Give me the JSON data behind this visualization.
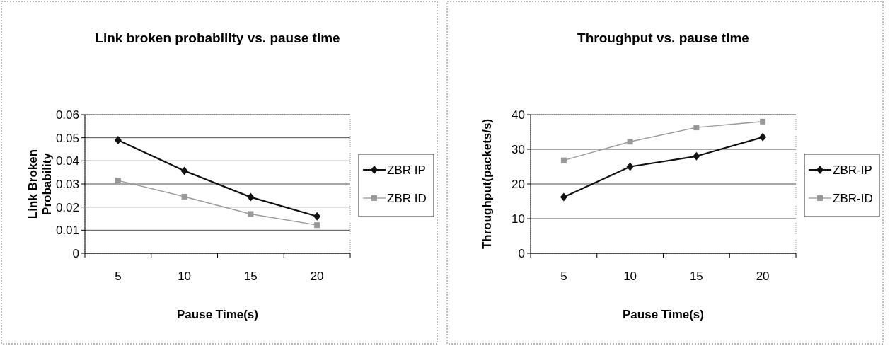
{
  "chart_data": [
    {
      "type": "line",
      "title": "Link broken probability vs. pause time",
      "xlabel": "Pause Time(s)",
      "ylabel": "Link Broken Probability",
      "categories": [
        "5",
        "10",
        "15",
        "20"
      ],
      "ylim": [
        0,
        0.06
      ],
      "yticks": [
        {
          "value": 0,
          "label": "0"
        },
        {
          "value": 0.01,
          "label": "0.01"
        },
        {
          "value": 0.02,
          "label": "0.02"
        },
        {
          "value": 0.03,
          "label": "0.03"
        },
        {
          "value": 0.04,
          "label": "0.04"
        },
        {
          "value": 0.05,
          "label": "0.05"
        },
        {
          "value": 0.06,
          "label": "0.06"
        }
      ],
      "grid": "y",
      "legend": "right",
      "series": [
        {
          "name": "ZBR IP",
          "color": "#111111",
          "marker": "diamond",
          "values": [
            0.049,
            0.0357,
            0.0243,
            0.016
          ]
        },
        {
          "name": "ZBR ID",
          "color": "#999999",
          "marker": "square",
          "values": [
            0.0315,
            0.0245,
            0.017,
            0.0122
          ]
        }
      ]
    },
    {
      "type": "line",
      "title": "Throughput vs. pause time",
      "xlabel": "Pause Time(s)",
      "ylabel": "Throughput(packets/s)",
      "categories": [
        "5",
        "10",
        "15",
        "20"
      ],
      "ylim": [
        0,
        40
      ],
      "yticks": [
        0,
        10,
        20,
        30,
        40
      ],
      "grid": "y",
      "legend": "right",
      "series": [
        {
          "name": "ZBR-IP",
          "color": "#111111",
          "marker": "diamond",
          "values": [
            16.2,
            25,
            28,
            33.5
          ]
        },
        {
          "name": "ZBR-ID",
          "color": "#999999",
          "marker": "square",
          "values": [
            26.8,
            32.2,
            36.3,
            38
          ]
        }
      ]
    }
  ]
}
